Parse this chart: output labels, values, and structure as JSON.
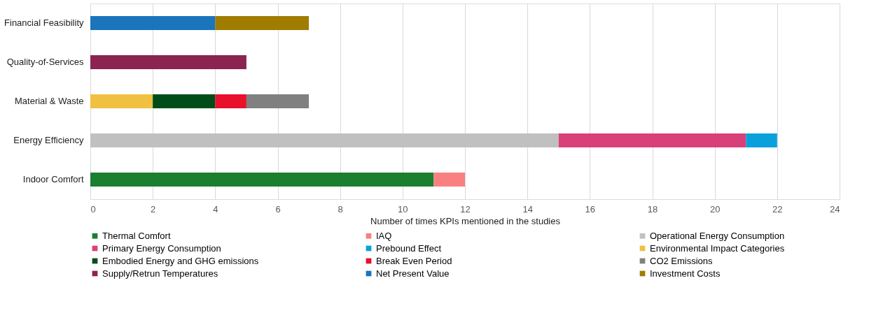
{
  "chart_data": {
    "type": "bar",
    "orientation": "horizontal",
    "stacked": true,
    "categories": [
      "Financial Feasibility",
      "Quality-of-Services",
      "Material & Waste",
      "Energy Efficiency",
      "Indoor Comfort"
    ],
    "xlabel": "Number of times KPIs mentioned in the studies",
    "xlim": [
      0,
      24
    ],
    "xticks": [
      0,
      2,
      4,
      6,
      8,
      10,
      12,
      14,
      16,
      18,
      20,
      22,
      24
    ],
    "grid": "x",
    "legend": "bottom",
    "series": [
      {
        "name": "Thermal Comfort",
        "color": "#1a7f2e",
        "values": [
          null,
          null,
          null,
          null,
          11
        ]
      },
      {
        "name": "IAQ",
        "color": "#f98080",
        "values": [
          null,
          null,
          null,
          null,
          1
        ]
      },
      {
        "name": "Operational Energy Consumption",
        "color": "#c0c0c0",
        "values": [
          null,
          null,
          null,
          15,
          null
        ]
      },
      {
        "name": "Primary Energy Consumption",
        "color": "#d9407a",
        "values": [
          null,
          null,
          null,
          6,
          null
        ]
      },
      {
        "name": "Prebound Effect",
        "color": "#0aa0dc",
        "values": [
          null,
          null,
          null,
          1,
          null
        ]
      },
      {
        "name": "Environmental Impact Categories",
        "color": "#f0c040",
        "values": [
          null,
          null,
          2,
          null,
          null
        ]
      },
      {
        "name": "Embodied Energy and GHG emissions",
        "color": "#004d1a",
        "values": [
          null,
          null,
          2,
          null,
          null
        ]
      },
      {
        "name": "Break Even Period",
        "color": "#e8102a",
        "values": [
          null,
          null,
          1,
          null,
          null
        ]
      },
      {
        "name": "CO2 Emissions",
        "color": "#808080",
        "values": [
          null,
          null,
          2,
          null,
          null
        ]
      },
      {
        "name": "Supply/Retrun Temperatures",
        "color": "#8b2550",
        "values": [
          null,
          5,
          null,
          null,
          null
        ]
      },
      {
        "name": "Net Present Value",
        "color": "#1a75bc",
        "values": [
          4,
          null,
          null,
          null,
          null
        ]
      },
      {
        "name": "Investment Costs",
        "color": "#a07c00",
        "values": [
          3,
          null,
          null,
          null,
          null
        ]
      }
    ]
  }
}
